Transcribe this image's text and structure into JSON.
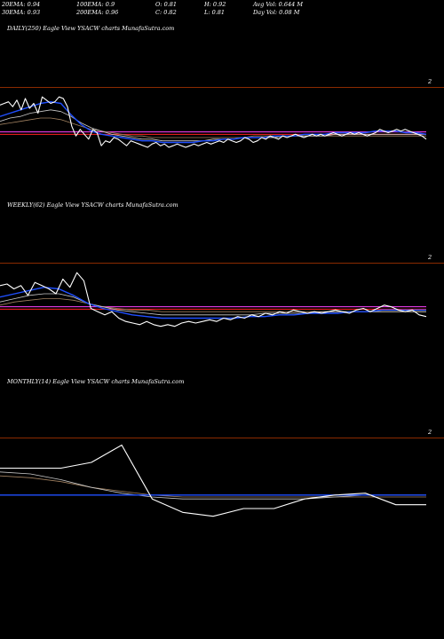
{
  "header": {
    "ema20": "20EMA: 0.94",
    "ema100": "100EMA: 0.9",
    "open": "O: 0.81",
    "high": "H: 0.92",
    "avgvol": "Avg Vol: 0.644  M",
    "ema30": "30EMA: 0.93",
    "ema200": "200EMA: 0.96",
    "close": "C: 0.82",
    "low": "L: 0.81",
    "dayvol": "Day Vol: 0.08 M"
  },
  "panels": [
    {
      "label": "DAILY(250) Eagle   View  YSACW charts MunafaSutra.com",
      "ymark": "2"
    },
    {
      "label": "WEEKLY(62) Eagle   View  YSACW charts MunafaSutra.com",
      "ymark": "2"
    },
    {
      "label": "MONTHLY(14) Eagle   View  YSACW charts MunafaSutra.com",
      "ymark": "2"
    }
  ],
  "colors": {
    "price": "#ffffff",
    "ema_fast": "#1f4fff",
    "ema_slow": "#c8c8c8",
    "ema_long": "#a08060",
    "level_magenta": "#ff40ff",
    "level_red": "#ff2020",
    "separator": "#8a2a00"
  },
  "chart_data": [
    {
      "type": "line",
      "title": "DAILY(250) Eagle   View  YSACW charts MunafaSutra.com",
      "ylim": [
        0.55,
        1.15
      ],
      "series": [
        {
          "color": "#ffffff",
          "values": [
            1.05,
            1.06,
            1.07,
            1.04,
            1.08,
            1.02,
            1.09,
            1.03,
            1.06,
            1.0,
            1.1,
            1.08,
            1.06,
            1.07,
            1.1,
            1.09,
            1.04,
            0.92,
            0.86,
            0.9,
            0.87,
            0.84,
            0.9,
            0.88,
            0.8,
            0.83,
            0.82,
            0.85,
            0.84,
            0.82,
            0.8,
            0.83,
            0.82,
            0.81,
            0.8,
            0.79,
            0.81,
            0.82,
            0.8,
            0.81,
            0.79,
            0.8,
            0.81,
            0.8,
            0.79,
            0.8,
            0.81,
            0.8,
            0.81,
            0.82,
            0.81,
            0.82,
            0.83,
            0.82,
            0.84,
            0.83,
            0.82,
            0.83,
            0.85,
            0.84,
            0.82,
            0.83,
            0.85,
            0.84,
            0.86,
            0.85,
            0.84,
            0.86,
            0.85,
            0.86,
            0.87,
            0.86,
            0.85,
            0.86,
            0.87,
            0.86,
            0.87,
            0.86,
            0.87,
            0.88,
            0.87,
            0.86,
            0.87,
            0.88,
            0.87,
            0.88,
            0.87,
            0.86,
            0.87,
            0.88,
            0.9,
            0.89,
            0.88,
            0.89,
            0.9,
            0.89,
            0.9,
            0.89,
            0.88,
            0.87,
            0.86,
            0.84
          ]
        },
        {
          "color": "#1f4fff",
          "values": [
            0.98,
            1.0,
            1.02,
            1.04,
            1.06,
            1.07,
            1.06,
            0.99,
            0.93,
            0.89,
            0.87,
            0.86,
            0.85,
            0.84,
            0.83,
            0.83,
            0.82,
            0.82,
            0.82,
            0.82,
            0.83,
            0.83,
            0.84,
            0.84,
            0.85,
            0.85,
            0.85,
            0.86,
            0.86,
            0.86,
            0.87,
            0.87,
            0.87,
            0.88,
            0.88,
            0.88,
            0.88,
            0.89,
            0.89,
            0.89,
            0.88,
            0.88,
            0.87
          ]
        },
        {
          "color": "#c8c8c8",
          "values": [
            0.95,
            0.97,
            0.98,
            1.0,
            1.01,
            1.02,
            1.01,
            0.98,
            0.94,
            0.91,
            0.89,
            0.87,
            0.86,
            0.85,
            0.84,
            0.84,
            0.83,
            0.83,
            0.83,
            0.83,
            0.83,
            0.84,
            0.84,
            0.84,
            0.85,
            0.85,
            0.85,
            0.85,
            0.86,
            0.86,
            0.86,
            0.86,
            0.86,
            0.87,
            0.87,
            0.87,
            0.87,
            0.87,
            0.87,
            0.87,
            0.87,
            0.87,
            0.87
          ]
        },
        {
          "color": "#a08060",
          "values": [
            0.93,
            0.94,
            0.95,
            0.96,
            0.97,
            0.97,
            0.96,
            0.94,
            0.92,
            0.9,
            0.89,
            0.88,
            0.87,
            0.86,
            0.86,
            0.85,
            0.85,
            0.85,
            0.85,
            0.85,
            0.85,
            0.85,
            0.85,
            0.85,
            0.85,
            0.86,
            0.86,
            0.86,
            0.86,
            0.86,
            0.86,
            0.86,
            0.86,
            0.86,
            0.86,
            0.86,
            0.86,
            0.86,
            0.86,
            0.86,
            0.86,
            0.86,
            0.86
          ]
        }
      ],
      "levels": [
        {
          "value": 0.885,
          "color": "#ff40ff"
        },
        {
          "value": 0.87,
          "color": "#ff2020"
        }
      ]
    },
    {
      "type": "line",
      "title": "WEEKLY(62) Eagle   View  YSACW charts MunafaSutra.com",
      "ylim": [
        0.55,
        1.15
      ],
      "series": [
        {
          "color": "#ffffff",
          "values": [
            1.02,
            1.03,
            1.0,
            1.02,
            0.96,
            1.04,
            1.02,
            1.0,
            0.97,
            1.06,
            1.01,
            1.1,
            1.05,
            0.88,
            0.86,
            0.84,
            0.86,
            0.82,
            0.8,
            0.79,
            0.78,
            0.8,
            0.78,
            0.77,
            0.78,
            0.77,
            0.79,
            0.8,
            0.79,
            0.8,
            0.81,
            0.8,
            0.82,
            0.81,
            0.83,
            0.82,
            0.84,
            0.83,
            0.85,
            0.84,
            0.86,
            0.85,
            0.87,
            0.86,
            0.85,
            0.86,
            0.85,
            0.86,
            0.87,
            0.86,
            0.85,
            0.87,
            0.88,
            0.86,
            0.88,
            0.9,
            0.89,
            0.87,
            0.86,
            0.87,
            0.84,
            0.83
          ]
        },
        {
          "color": "#1f4fff",
          "values": [
            0.95,
            0.97,
            0.99,
            1.01,
            1.0,
            0.96,
            0.91,
            0.88,
            0.86,
            0.84,
            0.83,
            0.82,
            0.82,
            0.82,
            0.82,
            0.82,
            0.82,
            0.83,
            0.83,
            0.84,
            0.84,
            0.85,
            0.85,
            0.85,
            0.86,
            0.86,
            0.87,
            0.87,
            0.87,
            0.87
          ]
        },
        {
          "color": "#c8c8c8",
          "values": [
            0.92,
            0.94,
            0.96,
            0.97,
            0.97,
            0.95,
            0.91,
            0.89,
            0.87,
            0.86,
            0.85,
            0.84,
            0.84,
            0.84,
            0.84,
            0.84,
            0.84,
            0.84,
            0.85,
            0.85,
            0.85,
            0.85,
            0.86,
            0.86,
            0.86,
            0.86,
            0.86,
            0.86,
            0.86,
            0.86
          ]
        },
        {
          "color": "#a08060",
          "values": [
            0.9,
            0.92,
            0.93,
            0.94,
            0.94,
            0.93,
            0.91,
            0.89,
            0.88,
            0.87,
            0.87,
            0.86,
            0.86,
            0.86,
            0.86,
            0.86,
            0.86,
            0.86,
            0.86,
            0.86,
            0.86,
            0.86,
            0.86,
            0.86,
            0.86,
            0.86,
            0.86,
            0.86,
            0.86,
            0.86
          ]
        }
      ],
      "levels": [
        {
          "value": 0.89,
          "color": "#ff40ff"
        },
        {
          "value": 0.875,
          "color": "#ff2020"
        }
      ]
    },
    {
      "type": "line",
      "title": "MONTHLY(14) Eagle   View  YSACW charts MunafaSutra.com",
      "ylim": [
        0.55,
        1.15
      ],
      "series": [
        {
          "color": "#ffffff",
          "values": [
            1.0,
            1.0,
            1.0,
            1.03,
            1.12,
            0.84,
            0.77,
            0.75,
            0.79,
            0.79,
            0.84,
            0.86,
            0.87,
            0.81,
            0.81
          ]
        },
        {
          "color": "#1f4fff",
          "values": [
            0.86,
            0.86,
            0.86,
            0.86,
            0.86,
            0.86,
            0.86,
            0.86,
            0.86,
            0.86,
            0.86,
            0.86,
            0.86,
            0.86,
            0.86
          ]
        },
        {
          "color": "#c8c8c8",
          "values": [
            0.98,
            0.97,
            0.94,
            0.9,
            0.87,
            0.85,
            0.84,
            0.84,
            0.84,
            0.84,
            0.84,
            0.85,
            0.86,
            0.86,
            0.86
          ]
        },
        {
          "color": "#a08060",
          "values": [
            0.96,
            0.95,
            0.93,
            0.9,
            0.88,
            0.86,
            0.85,
            0.85,
            0.85,
            0.85,
            0.85,
            0.85,
            0.85,
            0.85,
            0.85
          ]
        }
      ],
      "levels": []
    }
  ]
}
